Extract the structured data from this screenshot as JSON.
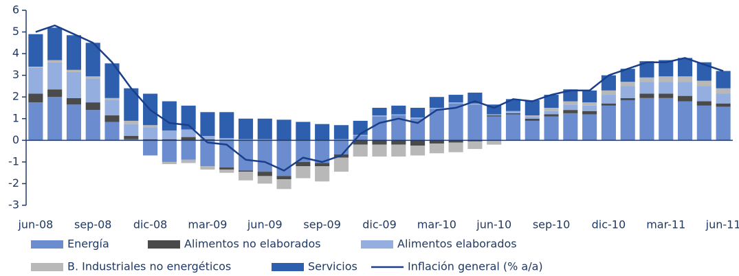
{
  "chart_data": {
    "type": "bar",
    "stacked": true,
    "categories": [
      "jun-08",
      null,
      null,
      "sep-08",
      null,
      null,
      "dic-08",
      null,
      null,
      "mar-09",
      null,
      null,
      "jun-09",
      null,
      null,
      "sep-09",
      null,
      null,
      "dic-09",
      null,
      null,
      "mar-10",
      null,
      null,
      "jun-10",
      null,
      null,
      "sep-10",
      null,
      null,
      "dic-10",
      null,
      null,
      "mar-11",
      null,
      null,
      "jun-11"
    ],
    "series": [
      {
        "name": "Energía",
        "color": "#6b8cce",
        "values": [
          1.75,
          2.0,
          1.65,
          1.4,
          0.85,
          0.05,
          -0.7,
          -1.0,
          -0.9,
          -1.2,
          -1.25,
          -1.4,
          -1.45,
          -1.65,
          -1.0,
          -1.05,
          -0.65,
          0.2,
          1.1,
          1.15,
          1.0,
          1.45,
          1.7,
          1.65,
          1.1,
          1.2,
          0.9,
          1.1,
          1.25,
          1.2,
          1.6,
          1.85,
          1.95,
          1.95,
          1.8,
          1.6,
          1.55
        ]
      },
      {
        "name": "Alimentos no elaborados",
        "color": "#4a4a4a",
        "values": [
          0.4,
          0.35,
          0.3,
          0.35,
          0.3,
          0.15,
          0.05,
          0.05,
          0.15,
          0.05,
          -0.1,
          -0.05,
          -0.2,
          -0.15,
          -0.2,
          -0.15,
          -0.15,
          -0.2,
          -0.2,
          -0.2,
          -0.25,
          -0.15,
          -0.1,
          -0.05,
          0.05,
          0.05,
          0.1,
          0.1,
          0.15,
          0.15,
          0.1,
          0.1,
          0.2,
          0.2,
          0.25,
          0.2,
          0.15
        ]
      },
      {
        "name": "Alimentos elaborados",
        "color": "#94aee0",
        "values": [
          1.2,
          1.25,
          1.2,
          1.1,
          0.7,
          0.55,
          0.55,
          0.4,
          0.35,
          0.15,
          0.1,
          0.05,
          0.05,
          0,
          0,
          0,
          0.05,
          0.05,
          0.05,
          0.05,
          0.05,
          0.05,
          0.05,
          0.05,
          0.05,
          0.1,
          0.1,
          0.15,
          0.25,
          0.25,
          0.4,
          0.55,
          0.55,
          0.55,
          0.65,
          0.7,
          0.45
        ]
      },
      {
        "name": "B. Industriales no energéticos",
        "color": "#b8b8b8",
        "values": [
          0.05,
          0.1,
          0.1,
          0.1,
          0.1,
          0.15,
          0.1,
          -0.1,
          -0.15,
          -0.15,
          -0.15,
          -0.4,
          -0.35,
          -0.45,
          -0.55,
          -0.7,
          -0.65,
          -0.55,
          -0.55,
          -0.55,
          -0.45,
          -0.45,
          -0.45,
          -0.35,
          -0.2,
          0,
          0.05,
          0.15,
          0.15,
          0.15,
          0.2,
          0.2,
          0.2,
          0.25,
          0.25,
          0.25,
          0.25
        ]
      },
      {
        "name": "Servicios",
        "color": "#2d5fae",
        "values": [
          1.5,
          1.5,
          1.6,
          1.55,
          1.6,
          1.5,
          1.45,
          1.35,
          1.1,
          1.1,
          1.2,
          0.95,
          0.95,
          0.95,
          0.85,
          0.75,
          0.65,
          0.65,
          0.35,
          0.4,
          0.45,
          0.5,
          0.35,
          0.5,
          0.45,
          0.55,
          0.7,
          0.6,
          0.55,
          0.55,
          0.7,
          0.6,
          0.75,
          0.75,
          0.85,
          0.85,
          0.8
        ]
      },
      {
        "name": "Inflación general (% a/a)",
        "type": "line",
        "color": "#1a3f8a",
        "values": [
          5.0,
          5.3,
          4.9,
          4.5,
          3.6,
          2.4,
          1.4,
          0.8,
          0.7,
          -0.1,
          -0.2,
          -0.9,
          -1.0,
          -1.4,
          -0.8,
          -1.0,
          -0.7,
          0.3,
          0.8,
          1.0,
          0.8,
          1.4,
          1.5,
          1.8,
          1.5,
          1.9,
          1.8,
          2.1,
          2.3,
          2.3,
          3.0,
          3.3,
          3.6,
          3.6,
          3.8,
          3.5,
          3.2
        ]
      }
    ],
    "ylim": [
      -3,
      6
    ],
    "yticks": [
      -3,
      -2,
      -1,
      0,
      1,
      2,
      3,
      4,
      5,
      6
    ]
  }
}
